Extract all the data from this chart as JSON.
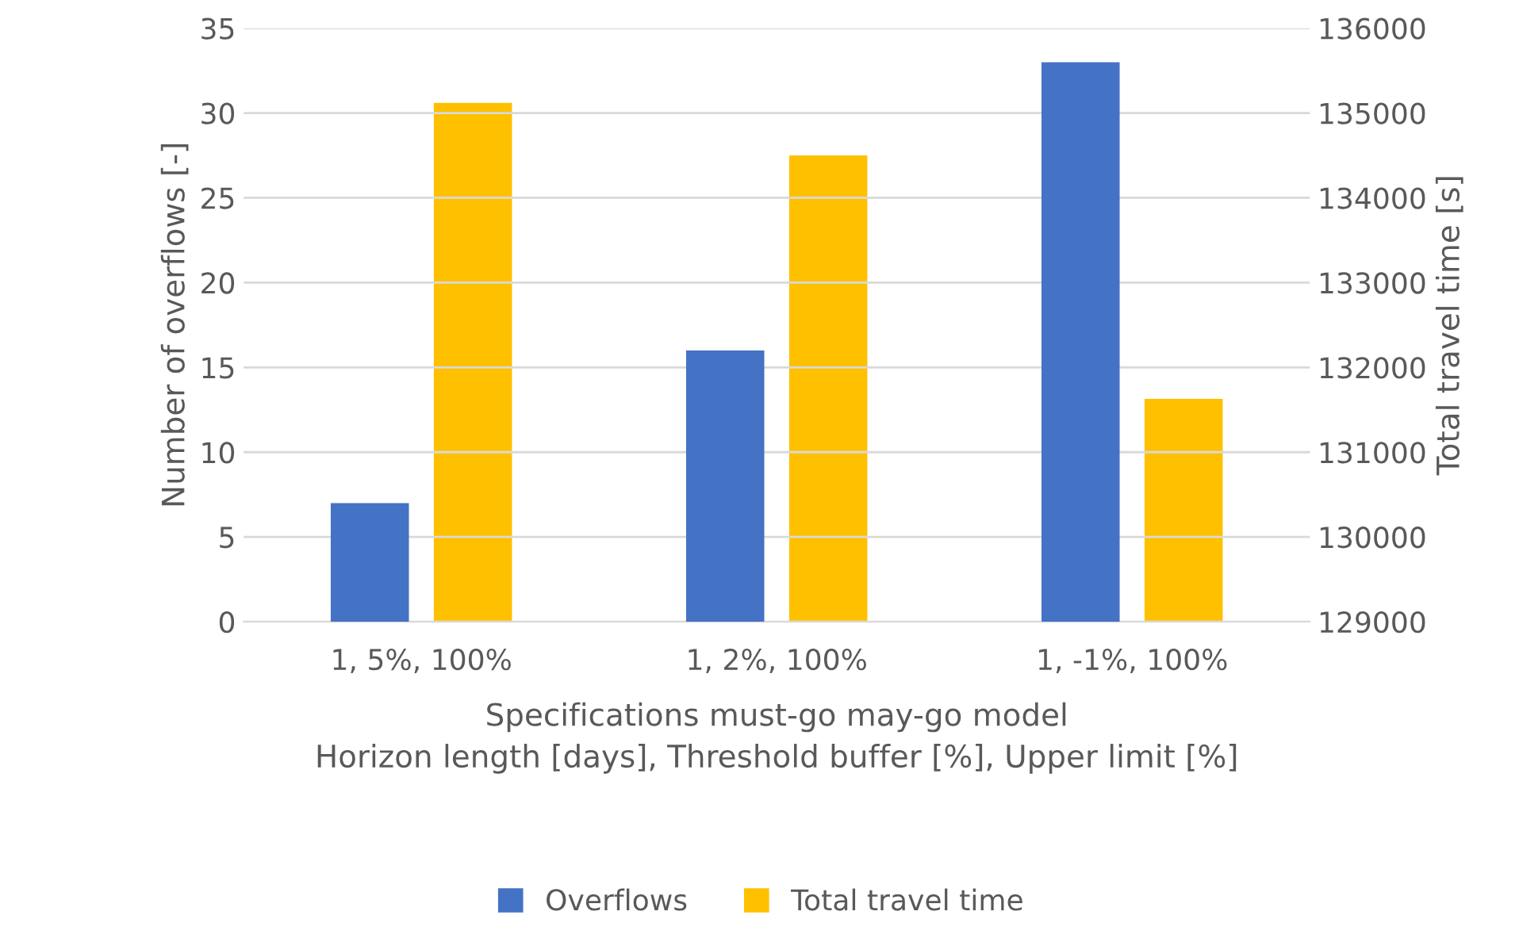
{
  "chart_data": {
    "type": "bar",
    "xlabel": "Specifications must-go may-go model\nHorizon length [days], Threshold buffer [%], Upper limit [%]",
    "ylabel": "Number of overflows [-]",
    "y2label": "Total travel time [s]",
    "categories": [
      "1, 5%, 100%",
      "1, 2%, 100%",
      "1, -1%, 100%"
    ],
    "series": [
      {
        "name": "Overflows",
        "color": "#4472c4",
        "values": [
          7,
          16,
          33
        ]
      },
      {
        "name": "Total travel time",
        "color": "#ffc000",
        "values": [
          135120,
          134500,
          131630
        ],
        "axis": "y2"
      }
    ],
    "ylim": [
      0,
      35
    ],
    "yticks": [
      0,
      5,
      10,
      15,
      20,
      25,
      30,
      35
    ],
    "y2lim": [
      129000,
      136000
    ],
    "y2ticks": [
      129000,
      130000,
      131000,
      132000,
      133000,
      134000,
      135000,
      136000
    ],
    "grid": "y",
    "legend": "bottom"
  }
}
